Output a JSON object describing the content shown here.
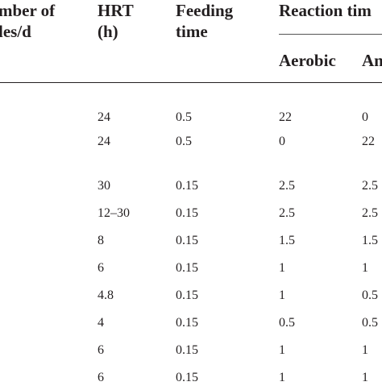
{
  "table": {
    "headers": {
      "cycles": [
        "mber of",
        "les/d"
      ],
      "hrt": [
        "HRT",
        "(h)"
      ],
      "feeding": [
        "Feeding",
        "time"
      ],
      "reaction": "Reaction tim",
      "aerobic": "Aerobic",
      "anaerobic": "An"
    },
    "rows": [
      {
        "hrt": "24",
        "feeding": "0.5",
        "aerobic": "22",
        "anaerobic": "0"
      },
      {
        "hrt": "24",
        "feeding": "0.5",
        "aerobic": "0",
        "anaerobic": "22"
      },
      {
        "hrt": "30",
        "feeding": "0.15",
        "aerobic": "2.5",
        "anaerobic": "2.5"
      },
      {
        "hrt": "12–30",
        "feeding": "0.15",
        "aerobic": "2.5",
        "anaerobic": "2.5"
      },
      {
        "hrt": "8",
        "feeding": "0.15",
        "aerobic": "1.5",
        "anaerobic": "1.5"
      },
      {
        "hrt": "6",
        "feeding": "0.15",
        "aerobic": "1",
        "anaerobic": "1"
      },
      {
        "hrt": "4.8",
        "feeding": "0.15",
        "aerobic": "1",
        "anaerobic": "0.5"
      },
      {
        "hrt": "4",
        "feeding": "0.15",
        "aerobic": "0.5",
        "anaerobic": "0.5"
      },
      {
        "hrt": "6",
        "feeding": "0.15",
        "aerobic": "1",
        "anaerobic": "1"
      },
      {
        "hrt": "6",
        "feeding": "0.15",
        "aerobic": "1",
        "anaerobic": "1"
      }
    ]
  }
}
